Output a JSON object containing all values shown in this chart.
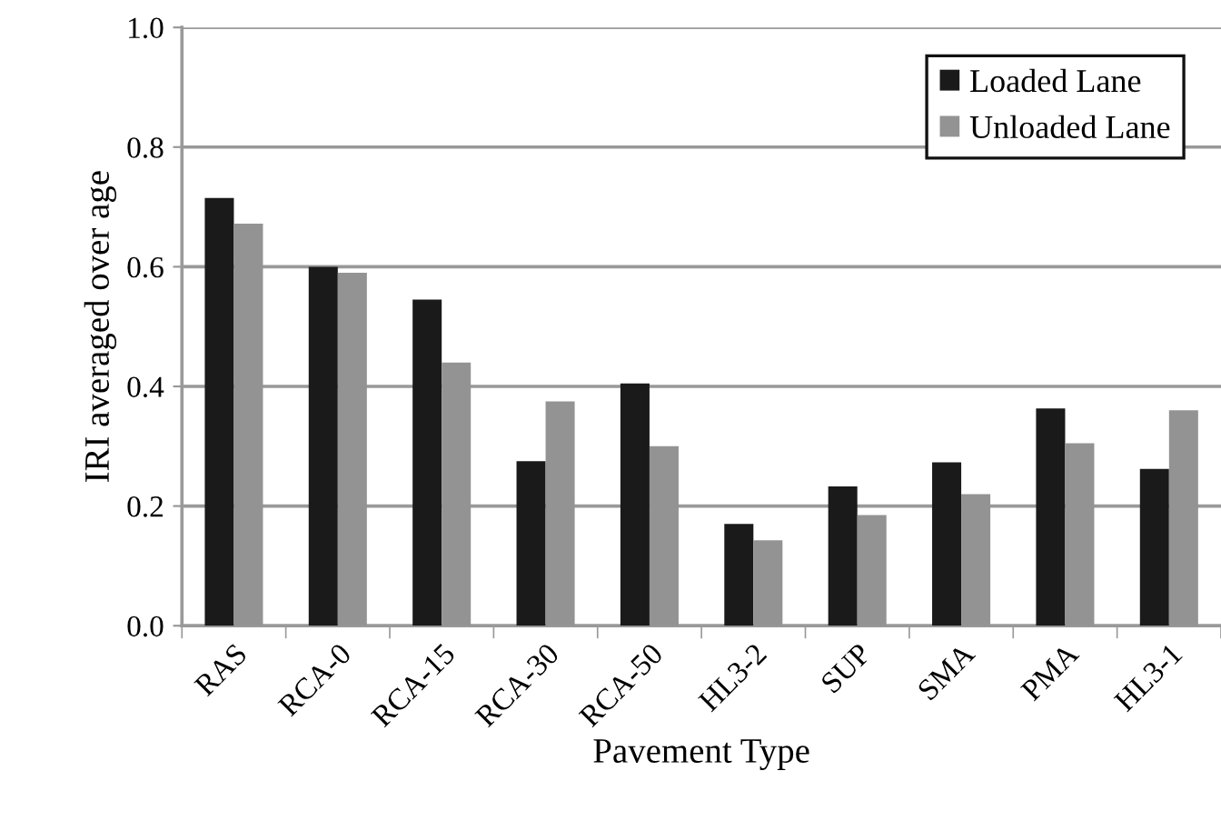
{
  "chart_data": {
    "type": "bar",
    "xlabel": "Pavement Type",
    "ylabel": "IRI averaged over age",
    "categories": [
      "RAS",
      "RCA-0",
      "RCA-15",
      "RCA-30",
      "RCA-50",
      "HL3-2",
      "SUP",
      "SMA",
      "PMA",
      "HL3-1"
    ],
    "series": [
      {
        "name": "Loaded Lane",
        "color": "#1a1a1a",
        "values": [
          0.715,
          0.6,
          0.545,
          0.275,
          0.405,
          0.17,
          0.233,
          0.273,
          0.363,
          0.262
        ]
      },
      {
        "name": "Unloaded Lane",
        "color": "#939393",
        "values": [
          0.672,
          0.59,
          0.44,
          0.375,
          0.3,
          0.143,
          0.185,
          0.22,
          0.305,
          0.36
        ]
      }
    ],
    "ylim": [
      0,
      1.0
    ],
    "yticks": [
      {
        "value": 0,
        "label": "0.0"
      },
      {
        "value": 0.2,
        "label": "0.2"
      },
      {
        "value": 0.4,
        "label": "0.4"
      },
      {
        "value": 0.6,
        "label": "0.6"
      },
      {
        "value": 0.8,
        "label": "0.8"
      },
      {
        "value": 1.0,
        "label": "1.0"
      }
    ],
    "grid": "y",
    "legend": "top right"
  }
}
